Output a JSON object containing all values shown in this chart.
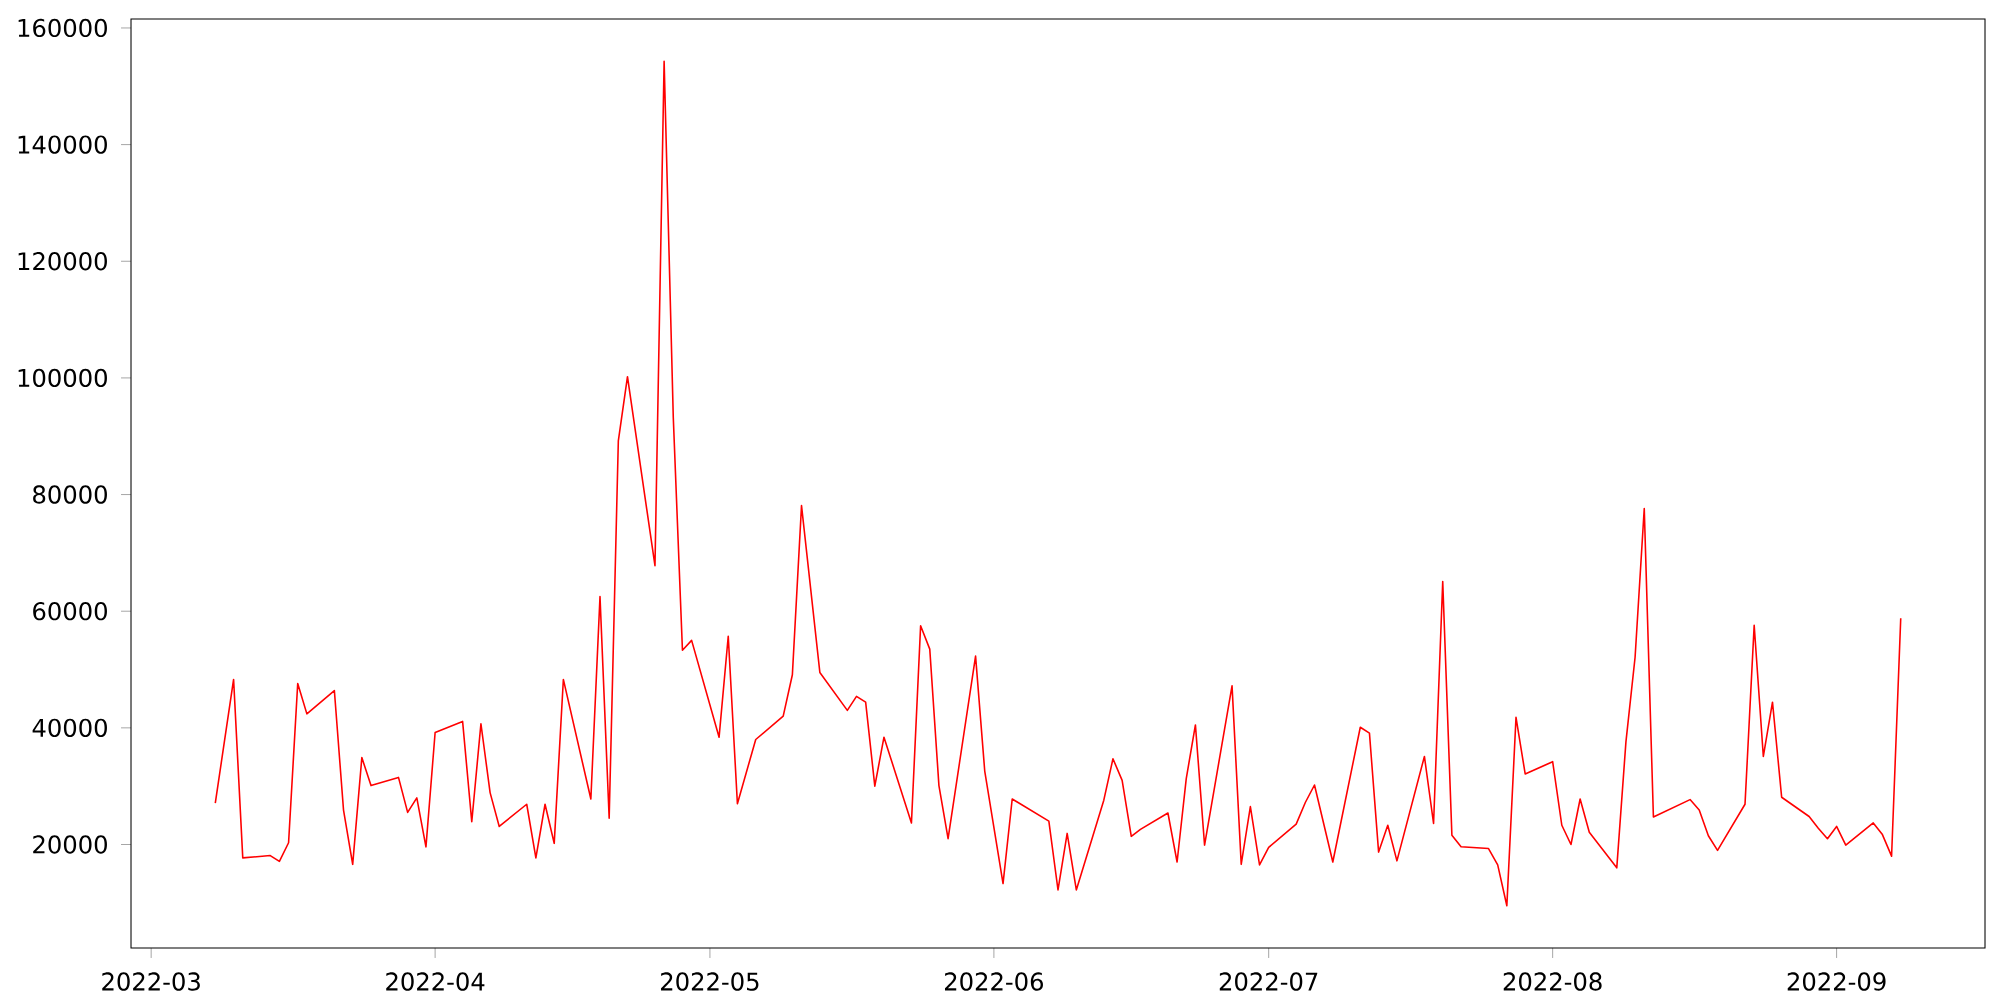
{
  "chart_data": {
    "type": "line",
    "color": "#ff0000",
    "x": [
      "2022-03-08",
      "2022-03-10",
      "2022-03-11",
      "2022-03-14",
      "2022-03-15",
      "2022-03-16",
      "2022-03-17",
      "2022-03-18",
      "2022-03-21",
      "2022-03-22",
      "2022-03-23",
      "2022-03-24",
      "2022-03-25",
      "2022-03-28",
      "2022-03-29",
      "2022-03-30",
      "2022-03-31",
      "2022-04-01",
      "2022-04-04",
      "2022-04-05",
      "2022-04-06",
      "2022-04-07",
      "2022-04-08",
      "2022-04-11",
      "2022-04-12",
      "2022-04-13",
      "2022-04-14",
      "2022-04-15",
      "2022-04-18",
      "2022-04-19",
      "2022-04-20",
      "2022-04-21",
      "2022-04-22",
      "2022-04-25",
      "2022-04-26",
      "2022-04-27",
      "2022-04-28",
      "2022-04-29",
      "2022-05-02",
      "2022-05-03",
      "2022-05-04",
      "2022-05-06",
      "2022-05-09",
      "2022-05-10",
      "2022-05-11",
      "2022-05-13",
      "2022-05-16",
      "2022-05-17",
      "2022-05-18",
      "2022-05-19",
      "2022-05-20",
      "2022-05-23",
      "2022-05-24",
      "2022-05-25",
      "2022-05-26",
      "2022-05-27",
      "2022-05-30",
      "2022-05-31",
      "2022-06-02",
      "2022-06-03",
      "2022-06-07",
      "2022-06-08",
      "2022-06-09",
      "2022-06-10",
      "2022-06-13",
      "2022-06-14",
      "2022-06-15",
      "2022-06-16",
      "2022-06-17",
      "2022-06-20",
      "2022-06-21",
      "2022-06-22",
      "2022-06-23",
      "2022-06-24",
      "2022-06-27",
      "2022-06-28",
      "2022-06-29",
      "2022-06-30",
      "2022-07-01",
      "2022-07-04",
      "2022-07-05",
      "2022-07-06",
      "2022-07-08",
      "2022-07-11",
      "2022-07-12",
      "2022-07-13",
      "2022-07-14",
      "2022-07-15",
      "2022-07-18",
      "2022-07-19",
      "2022-07-20",
      "2022-07-21",
      "2022-07-22",
      "2022-07-25",
      "2022-07-26",
      "2022-07-27",
      "2022-07-28",
      "2022-07-29",
      "2022-08-01",
      "2022-08-02",
      "2022-08-03",
      "2022-08-04",
      "2022-08-05",
      "2022-08-08",
      "2022-08-09",
      "2022-08-10",
      "2022-08-11",
      "2022-08-12",
      "2022-08-16",
      "2022-08-17",
      "2022-08-18",
      "2022-08-19",
      "2022-08-22",
      "2022-08-23",
      "2022-08-24",
      "2022-08-25",
      "2022-08-26",
      "2022-08-29",
      "2022-08-30",
      "2022-08-31",
      "2022-09-01",
      "2022-09-02",
      "2022-09-05",
      "2022-09-06",
      "2022-09-07",
      "2022-09-08"
    ],
    "values": [
      27100,
      48300,
      17700,
      18100,
      17100,
      20300,
      47600,
      42400,
      46400,
      25900,
      16600,
      34900,
      30100,
      31500,
      25500,
      28000,
      19600,
      39200,
      41100,
      23900,
      40700,
      28900,
      23100,
      26900,
      17700,
      26900,
      20200,
      48300,
      27800,
      62500,
      24500,
      89200,
      100200,
      67800,
      154300,
      93200,
      53300,
      55000,
      38400,
      55700,
      27000,
      38000,
      42000,
      49100,
      78100,
      49500,
      43000,
      45400,
      44400,
      30000,
      38400,
      23700,
      57500,
      53500,
      30100,
      21000,
      52300,
      32600,
      13300,
      27800,
      24000,
      12200,
      21900,
      12200,
      27600,
      34700,
      31000,
      21400,
      22600,
      25400,
      17000,
      31300,
      40500,
      19900,
      47200,
      16600,
      26500,
      16500,
      19500,
      23500,
      27200,
      30200,
      17000,
      40100,
      39100,
      18700,
      23300,
      17200,
      35100,
      23600,
      65100,
      21600,
      19600,
      19300,
      16500,
      9500,
      41800,
      32100,
      34200,
      23300,
      20000,
      27800,
      22100,
      16000,
      37600,
      52100,
      77600,
      24700,
      27700,
      25900,
      21500,
      19000,
      26900,
      57600,
      35100,
      44400,
      28100,
      24800,
      22800,
      21000,
      23100,
      19900,
      23700,
      21700,
      18000,
      58800
    ],
    "xlim": [
      "2022-02-26T19:12",
      "2022-09-17T04:48"
    ],
    "ylim": [
      2260,
      161540
    ],
    "xticks": [
      {
        "value": "2022-03-01",
        "label": "2022-03"
      },
      {
        "value": "2022-04-01",
        "label": "2022-04"
      },
      {
        "value": "2022-05-01",
        "label": "2022-05"
      },
      {
        "value": "2022-06-01",
        "label": "2022-06"
      },
      {
        "value": "2022-07-01",
        "label": "2022-07"
      },
      {
        "value": "2022-08-01",
        "label": "2022-08"
      },
      {
        "value": "2022-09-01",
        "label": "2022-09"
      }
    ],
    "yticks": [
      20000,
      40000,
      60000,
      80000,
      100000,
      120000,
      140000,
      160000
    ]
  }
}
